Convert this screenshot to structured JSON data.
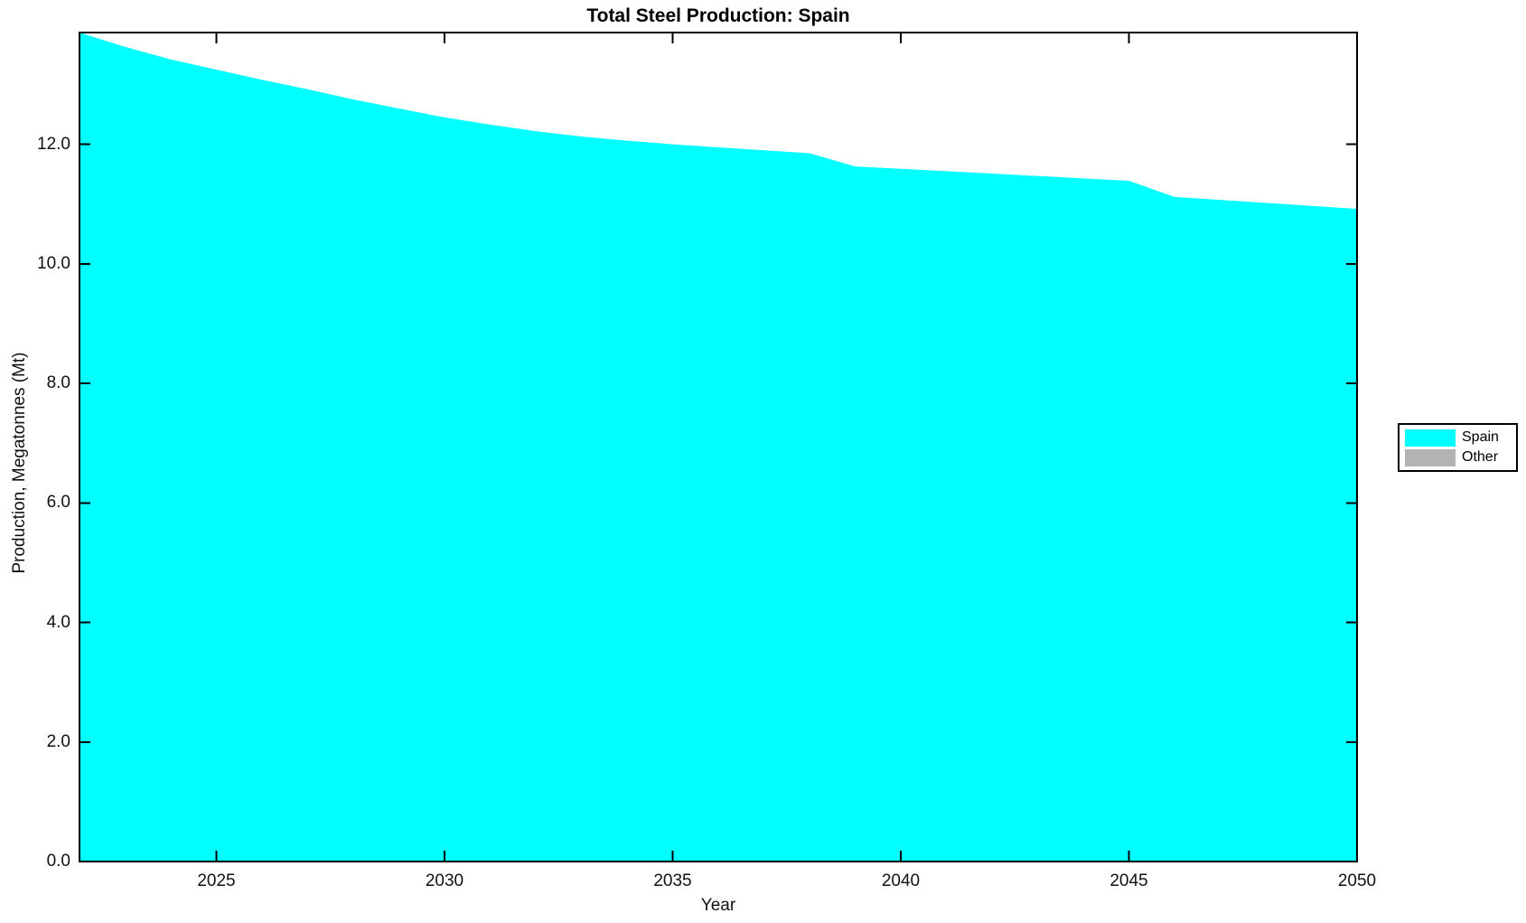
{
  "chart_data": {
    "type": "area",
    "title": "Total Steel Production: Spain",
    "xlabel": "Year",
    "ylabel": "Production, Megatonnes (Mt)",
    "xlim": [
      2022,
      2050
    ],
    "ylim": [
      0,
      13.87
    ],
    "xticks": [
      2025,
      2030,
      2035,
      2040,
      2045,
      2050
    ],
    "yticks": [
      0.0,
      2.0,
      4.0,
      6.0,
      8.0,
      10.0,
      12.0
    ],
    "ytick_decimals": 1,
    "grid": false,
    "legend_position": "right-outside",
    "x": [
      2022,
      2023,
      2024,
      2025,
      2026,
      2027,
      2028,
      2029,
      2030,
      2031,
      2032,
      2033,
      2034,
      2035,
      2036,
      2037,
      2038,
      2039,
      2040,
      2041,
      2042,
      2043,
      2044,
      2045,
      2046,
      2047,
      2048,
      2049,
      2050
    ],
    "series": [
      {
        "name": "Spain",
        "color": "#00FFFF",
        "values": [
          13.87,
          13.63,
          13.42,
          13.25,
          13.08,
          12.92,
          12.75,
          12.6,
          12.45,
          12.33,
          12.22,
          12.13,
          12.06,
          12.0,
          11.95,
          11.9,
          11.85,
          11.63,
          11.59,
          11.55,
          11.51,
          11.47,
          11.43,
          11.39,
          11.12,
          11.07,
          11.02,
          10.97,
          10.92
        ]
      },
      {
        "name": "Other",
        "color": "#B3B3B3",
        "values": []
      }
    ]
  }
}
